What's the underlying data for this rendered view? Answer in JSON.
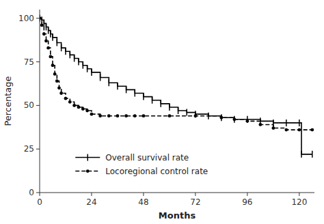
{
  "chart_data": {
    "type": "step",
    "xlabel": "Months",
    "ylabel": "Percentage",
    "xlim": [
      0,
      127
    ],
    "ylim": [
      0,
      105
    ],
    "xticks": [
      0,
      24,
      48,
      72,
      96,
      120
    ],
    "yticks": [
      0,
      25,
      50,
      75,
      100
    ],
    "grid": false,
    "legend": "lower left",
    "series": [
      {
        "name": "Overall survival rate",
        "color": "#000000",
        "line_style": "solid",
        "marker": "tick",
        "x": [
          0,
          1,
          2,
          3,
          4,
          5,
          6,
          8,
          10,
          12,
          14,
          16,
          18,
          20,
          22,
          24,
          28,
          32,
          36,
          40,
          44,
          48,
          52,
          56,
          60,
          64,
          68,
          72,
          78,
          84,
          90,
          96,
          102,
          108,
          114,
          120,
          121,
          126
        ],
        "values": [
          100,
          99,
          97,
          95,
          93,
          91,
          89,
          86,
          83,
          81,
          79,
          77,
          75,
          73,
          71,
          69,
          66,
          63,
          61,
          59,
          57,
          55,
          53,
          51,
          49,
          47,
          46,
          45,
          44,
          43,
          42,
          42,
          41,
          40,
          40,
          40,
          22,
          22
        ]
      },
      {
        "name": "Locoregional control rate",
        "color": "#000000",
        "line_style": "dashed",
        "marker": "dot",
        "x": [
          0,
          1,
          2,
          3,
          4,
          5,
          6,
          7,
          8,
          9,
          10,
          12,
          14,
          16,
          18,
          20,
          22,
          24,
          28,
          32,
          36,
          40,
          44,
          48,
          60,
          72,
          84,
          90,
          96,
          102,
          108,
          114,
          120,
          126
        ],
        "values": [
          100,
          96,
          91,
          87,
          83,
          78,
          73,
          68,
          64,
          60,
          57,
          54,
          52,
          50,
          49,
          48,
          47,
          45,
          44,
          44,
          44,
          44,
          44,
          44,
          44,
          44,
          43,
          42,
          41,
          39,
          37,
          36,
          36,
          36
        ]
      }
    ]
  }
}
